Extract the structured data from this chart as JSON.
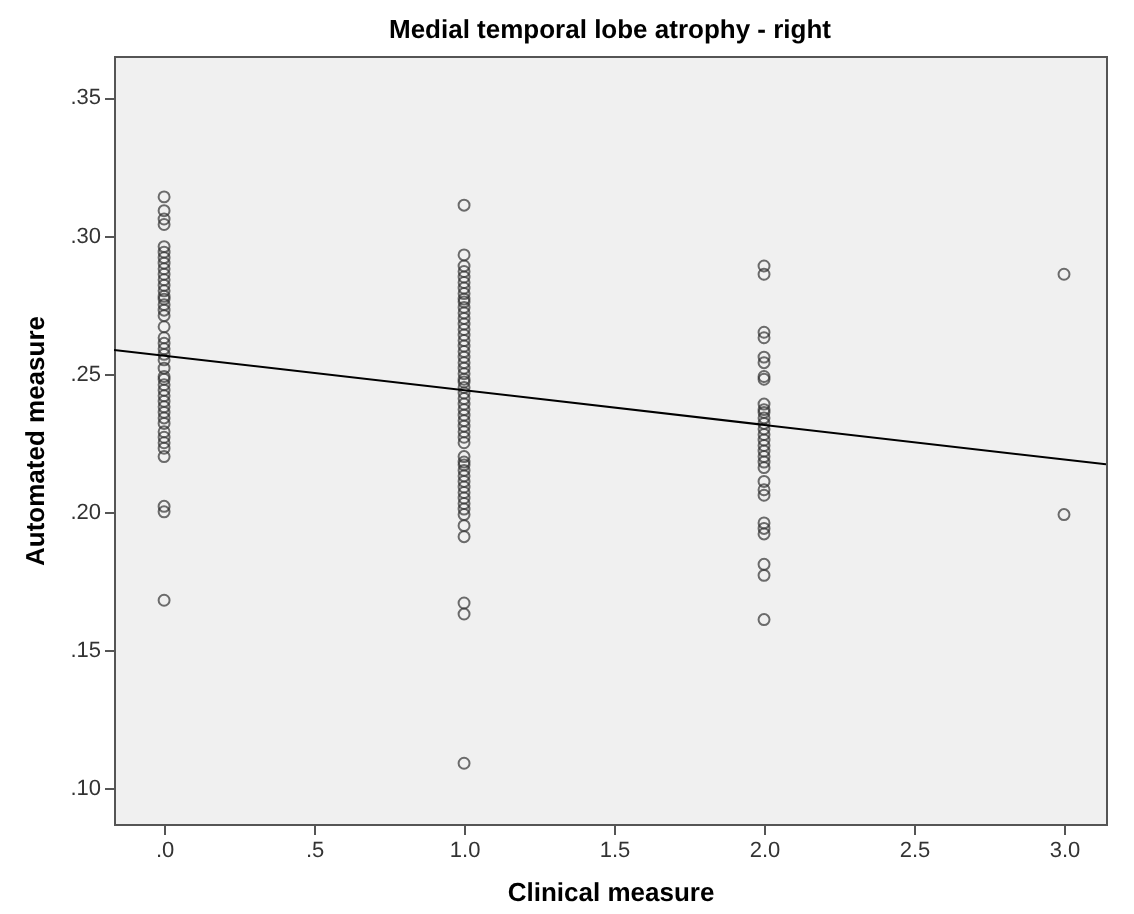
{
  "chart_data": {
    "type": "scatter",
    "title": "Medial temporal lobe atrophy - right",
    "xlabel": "Clinical measure",
    "ylabel": "Automated measure",
    "xlim": [
      -0.167,
      3.14
    ],
    "ylim": [
      0.087,
      0.365
    ],
    "xticks": [
      {
        "value": 0,
        "label": ".0"
      },
      {
        "value": 0.5,
        "label": ".5"
      },
      {
        "value": 1,
        "label": "1.0"
      },
      {
        "value": 1.5,
        "label": "1.5"
      },
      {
        "value": 2,
        "label": "2.0"
      },
      {
        "value": 2.5,
        "label": "2.5"
      },
      {
        "value": 3,
        "label": "3.0"
      }
    ],
    "yticks": [
      {
        "value": 0.1,
        "label": ".10"
      },
      {
        "value": 0.15,
        "label": ".15"
      },
      {
        "value": 0.2,
        "label": ".20"
      },
      {
        "value": 0.25,
        "label": ".25"
      },
      {
        "value": 0.3,
        "label": ".30"
      },
      {
        "value": 0.35,
        "label": ".35"
      }
    ],
    "grid": false,
    "marker": "circle",
    "series": [
      {
        "color": "#333333",
        "x": [
          0,
          0,
          0,
          0,
          0,
          0,
          0,
          0,
          0,
          0,
          0,
          0,
          0,
          0,
          0,
          0,
          0,
          0,
          0,
          0,
          0,
          0,
          0,
          0,
          0,
          0,
          0,
          0,
          0,
          0,
          0,
          0,
          0,
          0,
          0,
          0,
          0,
          0,
          0,
          0,
          0,
          0,
          0,
          1,
          1,
          1,
          1,
          1,
          1,
          1,
          1,
          1,
          1,
          1,
          1,
          1,
          1,
          1,
          1,
          1,
          1,
          1,
          1,
          1,
          1,
          1,
          1,
          1,
          1,
          1,
          1,
          1,
          1,
          1,
          1,
          1,
          1,
          1,
          1,
          1,
          1,
          1,
          1,
          1,
          1,
          1,
          1,
          1,
          1,
          1,
          1,
          1,
          1,
          1,
          1,
          1,
          2,
          2,
          2,
          2,
          2,
          2,
          2,
          2,
          2,
          2,
          2,
          2,
          2,
          2,
          2,
          2,
          2,
          2,
          2,
          2,
          2,
          2,
          2,
          2,
          2,
          2,
          2,
          2,
          2,
          2,
          3,
          3
        ],
        "values": [
          0.314,
          0.309,
          0.306,
          0.304,
          0.296,
          0.294,
          0.292,
          0.29,
          0.288,
          0.286,
          0.284,
          0.282,
          0.28,
          0.278,
          0.277,
          0.275,
          0.273,
          0.271,
          0.267,
          0.263,
          0.261,
          0.259,
          0.257,
          0.255,
          0.252,
          0.249,
          0.248,
          0.246,
          0.244,
          0.242,
          0.24,
          0.238,
          0.236,
          0.234,
          0.232,
          0.229,
          0.227,
          0.225,
          0.223,
          0.22,
          0.202,
          0.2,
          0.168,
          0.311,
          0.293,
          0.289,
          0.287,
          0.285,
          0.283,
          0.281,
          0.279,
          0.277,
          0.276,
          0.274,
          0.272,
          0.27,
          0.268,
          0.266,
          0.264,
          0.262,
          0.26,
          0.258,
          0.256,
          0.254,
          0.252,
          0.25,
          0.248,
          0.247,
          0.245,
          0.243,
          0.241,
          0.239,
          0.237,
          0.235,
          0.233,
          0.231,
          0.229,
          0.227,
          0.225,
          0.22,
          0.218,
          0.217,
          0.215,
          0.213,
          0.211,
          0.209,
          0.207,
          0.205,
          0.203,
          0.201,
          0.199,
          0.195,
          0.191,
          0.167,
          0.163,
          0.109,
          0.289,
          0.286,
          0.265,
          0.263,
          0.256,
          0.254,
          0.249,
          0.248,
          0.239,
          0.237,
          0.236,
          0.234,
          0.232,
          0.23,
          0.228,
          0.226,
          0.224,
          0.222,
          0.22,
          0.218,
          0.216,
          0.211,
          0.208,
          0.206,
          0.196,
          0.194,
          0.192,
          0.181,
          0.177,
          0.161,
          0.286,
          0.199
        ]
      },
      {
        "color": "#000000",
        "type": "line",
        "marker": "none",
        "line_style": "solid",
        "x": [
          -0.167,
          3.14
        ],
        "values": [
          0.2586,
          0.2172
        ]
      }
    ]
  }
}
